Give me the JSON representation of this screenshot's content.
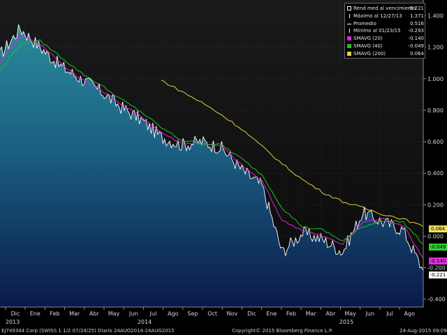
{
  "chart_data": {
    "type": "line",
    "title": "",
    "xlabel": "",
    "ylabel": "",
    "ylim": [
      -0.45,
      1.5
    ],
    "yticks": [
      "1.400",
      "1.200",
      "1.000",
      "0.800",
      "0.600",
      "0.400",
      "0.200",
      "0.000",
      "-0.200",
      "-0.400"
    ],
    "ytick_values": [
      1.4,
      1.2,
      1.0,
      0.8,
      0.6,
      0.4,
      0.2,
      0.0,
      -0.2,
      -0.4
    ],
    "months": [
      "Dic",
      "Ene",
      "Feb",
      "Mar",
      "Abr",
      "May",
      "Jun",
      "Jul",
      "Ago",
      "Sep",
      "Oct",
      "Nov",
      "Dic",
      "Ene",
      "Feb",
      "Mar",
      "Abr",
      "May",
      "Jun",
      "Jul",
      "Ago"
    ],
    "years": [
      "2013",
      "2014",
      "2015"
    ],
    "x": [
      "2013-11",
      "2013-12",
      "2014-01",
      "2014-02",
      "2014-03",
      "2014-04",
      "2014-05",
      "2014-06",
      "2014-07",
      "2014-08",
      "2014-09",
      "2014-10",
      "2014-11",
      "2014-12",
      "2015-01",
      "2015-02",
      "2015-03",
      "2015-04",
      "2015-05",
      "2015-06",
      "2015-07",
      "2015-08"
    ],
    "grid": true,
    "legend_position": "top-right",
    "series": [
      {
        "name": "Rend med al vencimiento",
        "color": "#ffffff",
        "area": true,
        "values": [
          1.15,
          1.32,
          1.2,
          1.08,
          1.0,
          0.92,
          0.82,
          0.74,
          0.63,
          0.58,
          0.6,
          0.56,
          0.42,
          0.32,
          -0.1,
          0.02,
          -0.02,
          -0.1,
          0.15,
          0.09,
          0.04,
          -0.22
        ]
      },
      {
        "name": "SMAVG (20)",
        "color": "#e020e0",
        "values": [
          1.1,
          1.28,
          1.22,
          1.1,
          1.0,
          0.93,
          0.84,
          0.76,
          0.66,
          0.59,
          0.59,
          0.57,
          0.45,
          0.35,
          0.1,
          0.04,
          -0.0,
          -0.05,
          0.09,
          0.11,
          0.07,
          -0.14
        ]
      },
      {
        "name": "SMAVG (40)",
        "color": "#20c020",
        "values": [
          1.05,
          1.22,
          1.24,
          1.14,
          1.04,
          0.96,
          0.87,
          0.79,
          0.69,
          0.61,
          0.59,
          0.58,
          0.49,
          0.39,
          0.18,
          0.06,
          0.04,
          -0.03,
          0.06,
          0.1,
          0.09,
          -0.05
        ]
      },
      {
        "name": "SMAVG (200)",
        "color": "#e0d040",
        "values": [
          null,
          null,
          null,
          null,
          null,
          null,
          null,
          null,
          0.99,
          0.92,
          0.85,
          0.77,
          0.68,
          0.57,
          0.46,
          0.36,
          0.28,
          0.22,
          0.18,
          0.14,
          0.11,
          0.06
        ]
      }
    ]
  },
  "legend": {
    "rows": [
      {
        "label": "Rend med al vencimiento",
        "value": "-0.221",
        "color": "#ffffff",
        "mark": "box-outline"
      },
      {
        "label": "Máximo al 12/27/13",
        "value": "1.371",
        "color": "#ffffff",
        "mark": "tick-up"
      },
      {
        "label": "Promedio",
        "value": "0.516",
        "color": "#ffffff",
        "mark": "dash"
      },
      {
        "label": "Mínimo al 01/23/15",
        "value": "-0.293",
        "color": "#ffffff",
        "mark": "tick-down"
      },
      {
        "label": "SMAVG (20)",
        "value": "-0.140",
        "color": "#e020e0",
        "mark": "box"
      },
      {
        "label": "SMAVG (40)",
        "value": "-0.049",
        "color": "#20c020",
        "mark": "box"
      },
      {
        "label": "SMAVG (200)",
        "value": "0.064",
        "color": "#e0d040",
        "mark": "box"
      }
    ]
  },
  "tags": [
    {
      "value": "0.064",
      "color": "#f0e060",
      "y": 0.064
    },
    {
      "value": "-0.049",
      "color": "#30d030",
      "y": -0.049
    },
    {
      "value": "-0.140",
      "color": "#e030e0",
      "y": -0.14
    },
    {
      "value": "-0.221",
      "color": "#ffffff",
      "y": -0.221
    }
  ],
  "footer": {
    "security": "EJ749344 Corp (SWISS 1 1/2 07/24/25)  Diario 24AUG2014-24AUG2015",
    "copyright": "Copyright© 2015 Bloomberg Finance L.P.",
    "timestamp": "24-Aug-2015 09:09:05"
  }
}
